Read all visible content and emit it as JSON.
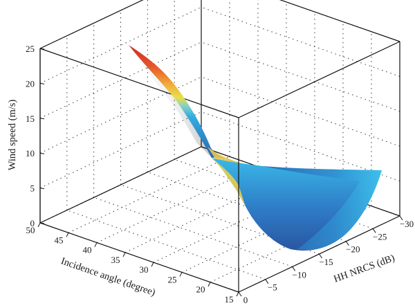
{
  "chart_data": {
    "type": "surface",
    "xlabel": "Incidence angle (degree)",
    "ylabel": "HH NRCS (dB)",
    "zlabel": "Wind speed (m/s)",
    "xlim": [
      15,
      50
    ],
    "ylim": [
      0,
      -30
    ],
    "zlim": [
      0,
      25
    ],
    "x_ticks": [
      "15",
      "20",
      "25",
      "30",
      "35",
      "40",
      "45",
      "50"
    ],
    "y_ticks": [
      "0",
      "−5",
      "−10",
      "−15",
      "−20",
      "−25",
      "−30"
    ],
    "z_ticks": [
      "0",
      "5",
      "10",
      "15",
      "20",
      "25"
    ],
    "grid": true,
    "colormap": "jet",
    "surface_points": [
      {
        "u": 0.0,
        "v": 0.0,
        "wind": 24.0
      },
      {
        "u": 0.0,
        "v": 1.0,
        "wind": 23.5
      },
      {
        "u": 0.33,
        "v": 0.5,
        "wind": 13.0
      },
      {
        "u": 0.5,
        "v": 0.0,
        "wind": 7.0
      },
      {
        "u": 0.5,
        "v": 1.0,
        "wind": 6.5
      },
      {
        "u": 0.72,
        "v": 1.0,
        "wind": 2.0
      },
      {
        "u": 1.0,
        "v": 0.0,
        "wind": 8.0
      },
      {
        "u": 1.0,
        "v": 1.0,
        "wind": 8.5
      }
    ]
  }
}
